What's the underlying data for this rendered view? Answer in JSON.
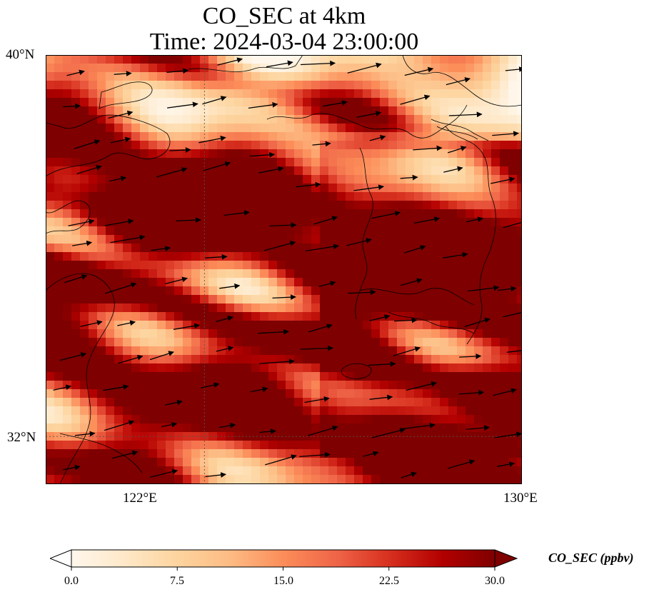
{
  "title": {
    "line1": "CO_SEC at 4km",
    "line2": "Time: 2024-03-04 23:00:00"
  },
  "map": {
    "lat_range": [
      31.0,
      40.0
    ],
    "lon_range": [
      118.0,
      130.0
    ],
    "gridline_lats": [
      32
    ],
    "gridline_lons": [
      122
    ],
    "lat_ticks": [
      "40°N",
      "32°N"
    ],
    "lon_ticks": [
      "122°E",
      "130°E"
    ],
    "field_name": "CO_SEC",
    "overlay": "wind vectors (black arrows), coastlines"
  },
  "colorbar": {
    "label": "CO_SEC (ppbv)",
    "min": 0.0,
    "max": 30.0,
    "extend": "both",
    "ticks": [
      "0.0",
      "7.5",
      "15.0",
      "22.5",
      "30.0"
    ],
    "colors": [
      "#fff7ec",
      "#fee8c8",
      "#fdd49e",
      "#fdbb84",
      "#fc8d59",
      "#ef6548",
      "#d7301f",
      "#b30000",
      "#7f0000"
    ]
  }
}
